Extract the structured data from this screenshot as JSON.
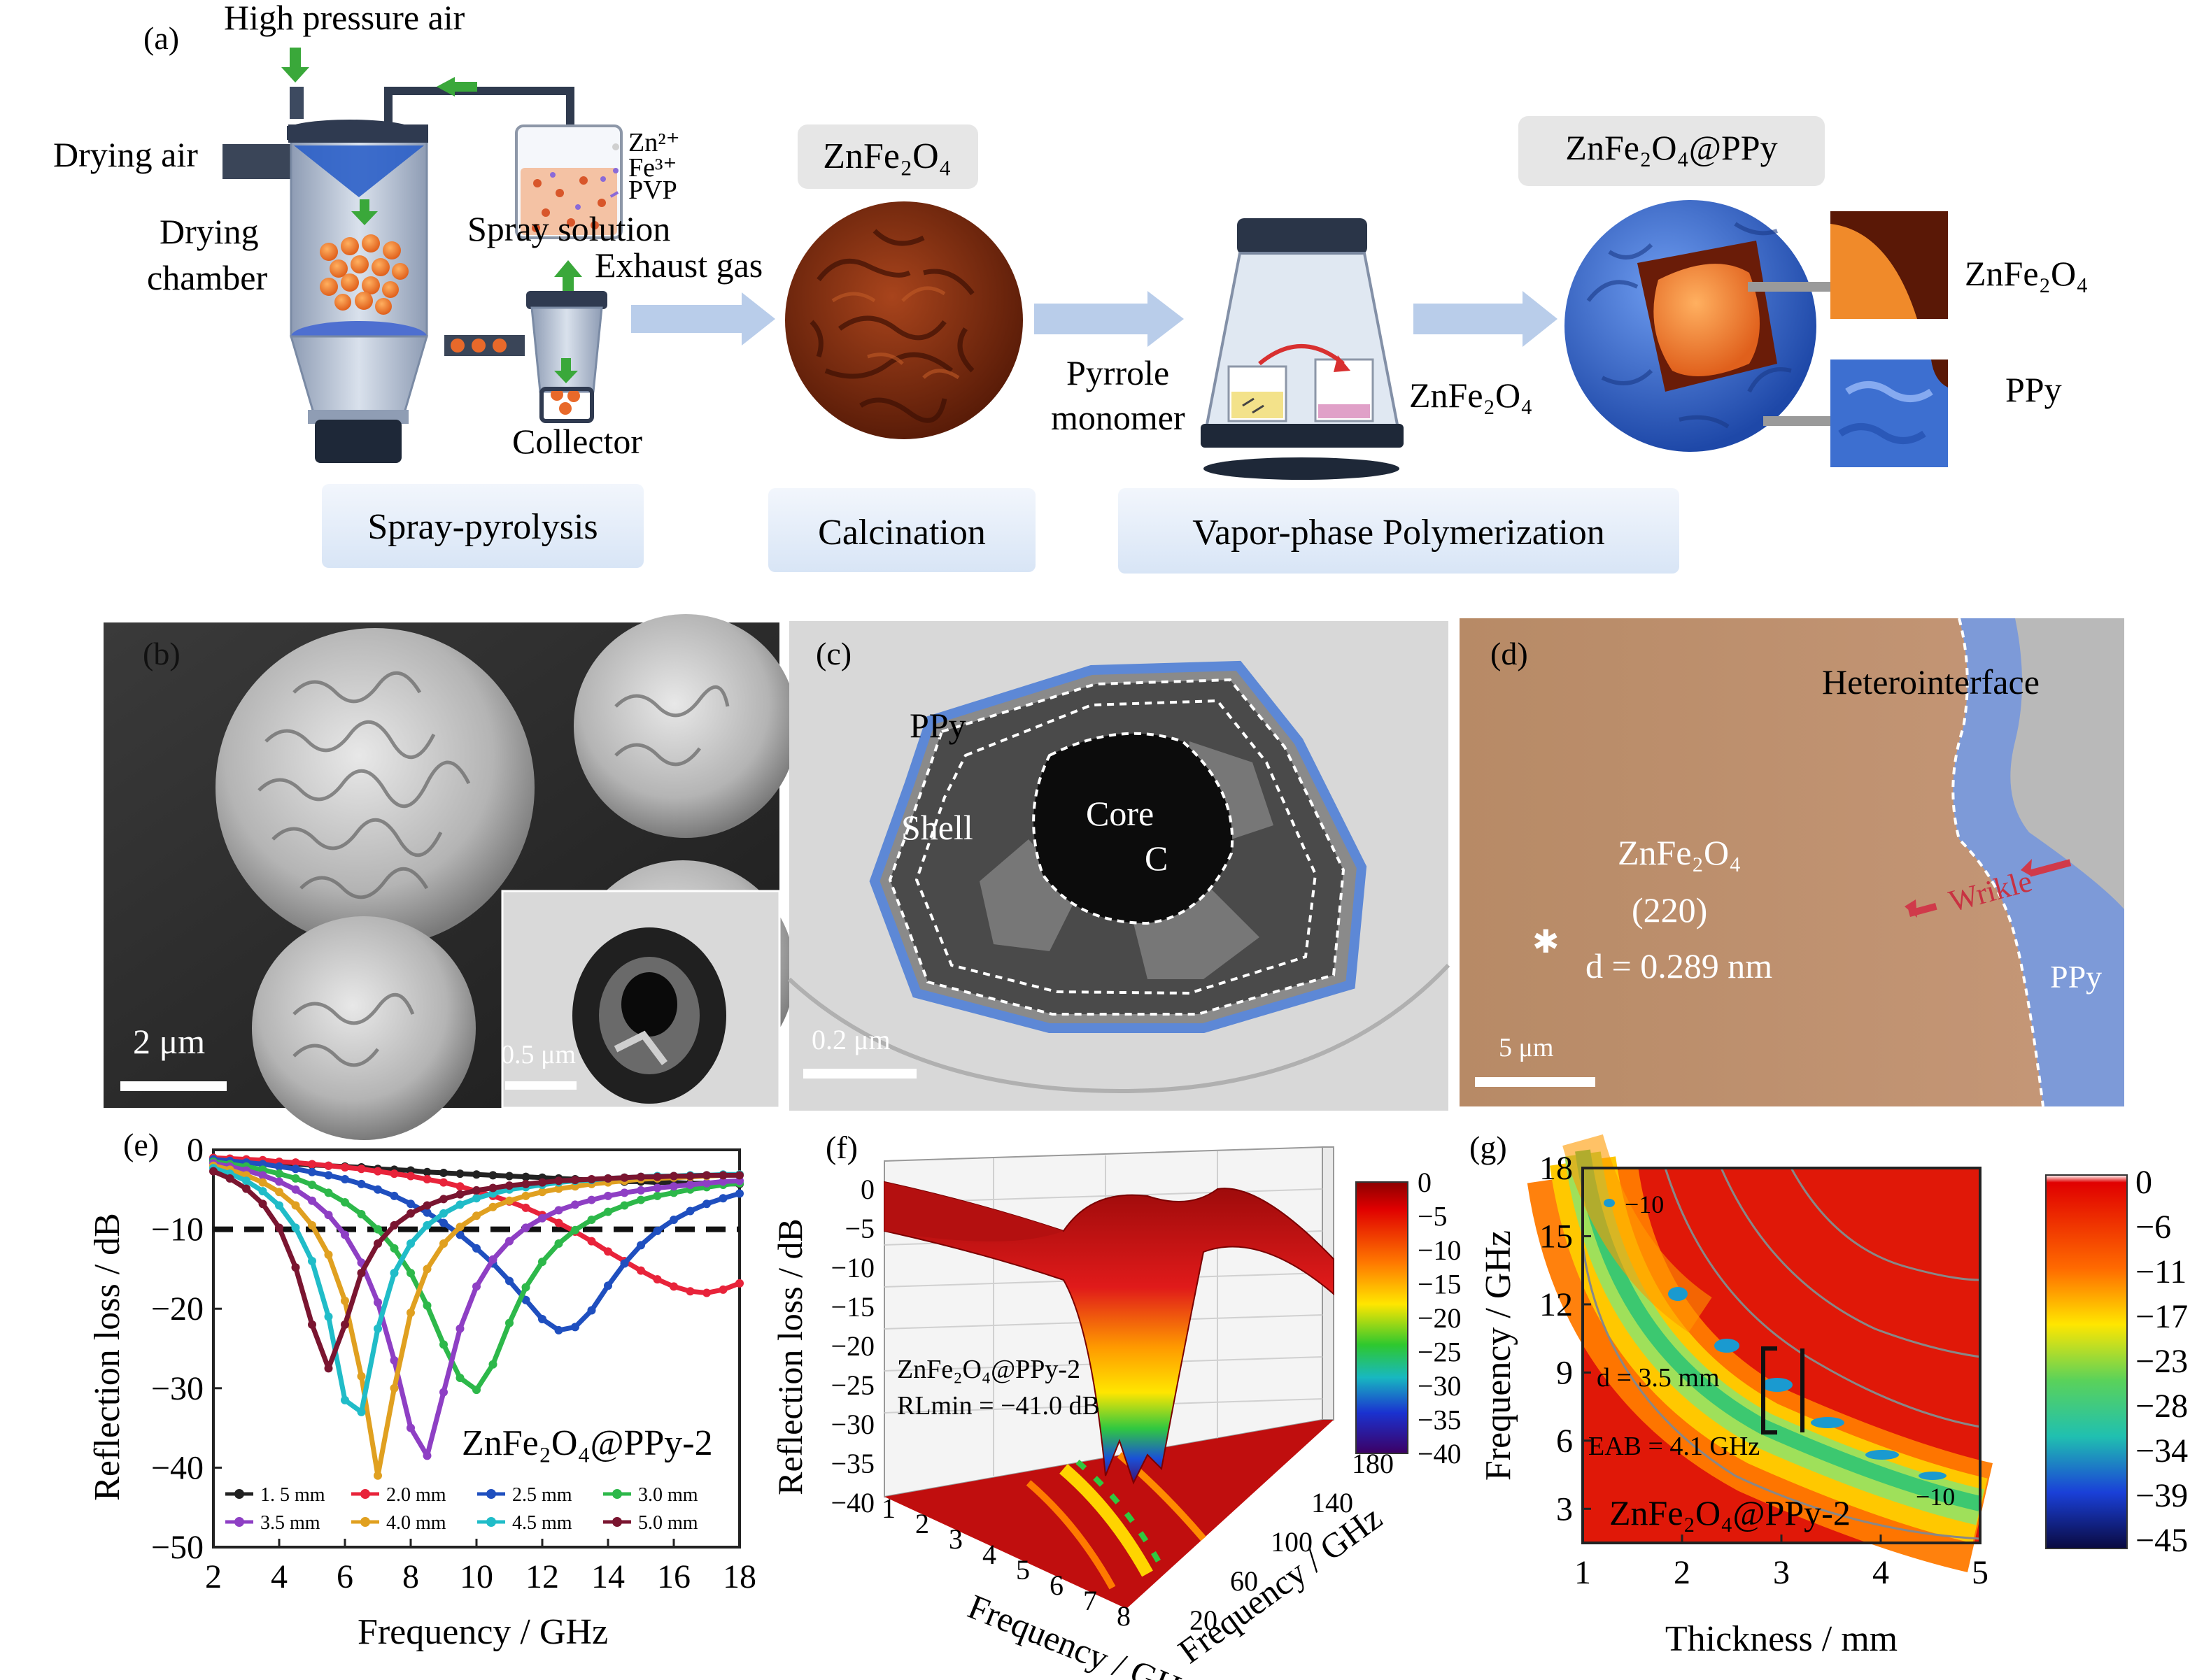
{
  "panel_a": {
    "label": "(a)",
    "high_pressure_air": "High pressure air",
    "drying_air": "Drying air",
    "drying_chamber_1": "Drying",
    "drying_chamber_2": "chamber",
    "zn": "Zn²⁺",
    "fe": "Fe³⁺",
    "pvp": "PVP",
    "spray_solution": "Spray solution",
    "exhaust_gas": "Exhaust gas",
    "collector": "Collector",
    "znfe2o4_tag": "ZnFe₂O₄",
    "pyrrole_1": "Pyrrole",
    "pyrrole_2": "monomer",
    "znfe2o4_mid": "ZnFe₂O₄",
    "composite_tag": "ZnFe₂O₄@PPy",
    "znfe2o4_right": "ZnFe₂O₄",
    "ppy_right": "PPy",
    "step_1": "Spray-pyrolysis",
    "step_2": "Calcination",
    "step_3": "Vapor-phase Polymerization",
    "colors": {
      "particle": "#e8692a",
      "shell": "#7a2a10",
      "ppy": "#3d6fd0",
      "chamber": "#b8c3d4",
      "arrow": "#b9cdea",
      "green_arrow": "#3aa83a"
    }
  },
  "panel_b": {
    "label": "(b)",
    "scale_main": "2 μm",
    "scale_inset": "0.5 μm"
  },
  "panel_c": {
    "label": "(c)",
    "ppy": "PPy",
    "shell": "Shell",
    "core": "Core",
    "c": "C",
    "scale": "0.2 μm"
  },
  "panel_d": {
    "label": "(d)",
    "hetero": "Heterointerface",
    "znfe2o4": "ZnFe₂O₄",
    "plane": "(220)",
    "d_value": "d = 0.289 nm",
    "wrinkle": "Wrikle",
    "ppy": "PPy",
    "scale": "5 μm"
  },
  "chart_data": [
    {
      "panel": "(e)",
      "type": "line",
      "xlabel": "Frequency / GHz",
      "ylabel": "Reflection loss / dB",
      "xlim": [
        2,
        18
      ],
      "ylim": [
        -50,
        0
      ],
      "xticks": [
        "2",
        "4",
        "6",
        "8",
        "10",
        "12",
        "14",
        "16",
        "18"
      ],
      "yticks": [
        "0",
        "−10",
        "−20",
        "−30",
        "−40",
        "−50"
      ],
      "annotation": "ZnFe₂O₄@PPy-2",
      "reference_line": -10,
      "x": [
        2,
        2.5,
        3,
        3.5,
        4,
        4.5,
        5,
        5.5,
        6,
        6.5,
        7,
        7.5,
        8,
        8.5,
        9,
        9.5,
        10,
        10.5,
        11,
        11.5,
        12,
        12.5,
        13,
        13.5,
        14,
        14.5,
        15,
        15.5,
        16,
        16.5,
        17,
        17.5,
        18
      ],
      "series": [
        {
          "name": "1. 5 mm",
          "color": "#222222",
          "values": [
            -1.3,
            -1.4,
            -1.5,
            -1.6,
            -1.7,
            -1.8,
            -1.9,
            -2.0,
            -2.1,
            -2.2,
            -2.4,
            -2.5,
            -2.6,
            -2.8,
            -2.9,
            -3.0,
            -3.1,
            -3.2,
            -3.3,
            -3.4,
            -3.5,
            -3.6,
            -3.7,
            -3.8,
            -3.9,
            -4.0,
            -4.0,
            -4.1,
            -4.1,
            -4.2,
            -4.2,
            -4.3,
            -4.3
          ]
        },
        {
          "name": "2.0 mm",
          "color": "#e8233a",
          "values": [
            -1.0,
            -1.1,
            -1.2,
            -1.3,
            -1.5,
            -1.6,
            -1.8,
            -2.0,
            -2.2,
            -2.4,
            -2.7,
            -3.0,
            -3.3,
            -3.7,
            -4.1,
            -4.6,
            -5.2,
            -5.8,
            -6.5,
            -7.3,
            -8.2,
            -9.2,
            -10.3,
            -11.5,
            -12.8,
            -14.0,
            -15.2,
            -16.3,
            -17.2,
            -17.8,
            -18.0,
            -17.6,
            -16.8
          ]
        },
        {
          "name": "2.5 mm",
          "color": "#1f4fbf",
          "values": [
            -1.2,
            -1.4,
            -1.6,
            -1.8,
            -2.1,
            -2.4,
            -2.8,
            -3.2,
            -3.7,
            -4.3,
            -5.0,
            -5.8,
            -6.8,
            -7.9,
            -9.2,
            -10.7,
            -12.4,
            -14.3,
            -16.5,
            -18.9,
            -21.3,
            -22.7,
            -22.3,
            -20.2,
            -17.1,
            -14.3,
            -12.0,
            -10.2,
            -8.8,
            -7.7,
            -6.8,
            -6.1,
            -5.5
          ]
        },
        {
          "name": "3.0 mm",
          "color": "#2db84a",
          "values": [
            -1.5,
            -1.8,
            -2.1,
            -2.5,
            -3.0,
            -3.6,
            -4.4,
            -5.4,
            -6.6,
            -8.1,
            -10.0,
            -12.4,
            -15.5,
            -19.6,
            -24.5,
            -28.7,
            -30.2,
            -27.0,
            -21.8,
            -17.3,
            -14.1,
            -11.8,
            -10.1,
            -8.8,
            -7.8,
            -7.0,
            -6.3,
            -5.8,
            -5.4,
            -5.0,
            -4.7,
            -4.4,
            -4.2
          ]
        },
        {
          "name": "3.5 mm",
          "color": "#8e3fc4",
          "values": [
            -1.7,
            -2.1,
            -2.6,
            -3.2,
            -4.0,
            -5.0,
            -6.4,
            -8.2,
            -10.7,
            -14.2,
            -19.2,
            -26.5,
            -35.0,
            -38.5,
            -30.5,
            -22.5,
            -17.2,
            -13.8,
            -11.5,
            -9.8,
            -8.6,
            -7.6,
            -6.9,
            -6.3,
            -5.8,
            -5.4,
            -5.1,
            -4.8,
            -4.6,
            -4.4,
            -4.2,
            -4.0,
            -3.9
          ]
        },
        {
          "name": "4.0 mm",
          "color": "#e0a020",
          "values": [
            -2.0,
            -2.5,
            -3.2,
            -4.1,
            -5.3,
            -7.0,
            -9.5,
            -13.2,
            -19.0,
            -28.5,
            -41.0,
            -30.0,
            -20.5,
            -15.0,
            -11.8,
            -9.7,
            -8.3,
            -7.2,
            -6.4,
            -5.8,
            -5.3,
            -4.9,
            -4.6,
            -4.3,
            -4.1,
            -3.9,
            -3.7,
            -3.6,
            -3.5,
            -3.4,
            -3.3,
            -3.2,
            -3.1
          ]
        },
        {
          "name": "4.5 mm",
          "color": "#20bcc8",
          "values": [
            -2.3,
            -3.0,
            -3.9,
            -5.2,
            -7.0,
            -9.8,
            -14.0,
            -21.0,
            -31.5,
            -33.0,
            -22.5,
            -15.5,
            -11.8,
            -9.5,
            -8.0,
            -6.9,
            -6.1,
            -5.5,
            -5.0,
            -4.7,
            -4.4,
            -4.1,
            -3.9,
            -3.8,
            -3.6,
            -3.5,
            -3.4,
            -3.3,
            -3.3,
            -3.2,
            -3.2,
            -3.1,
            -3.1
          ]
        },
        {
          "name": "5.0 mm",
          "color": "#7a1530",
          "values": [
            -2.7,
            -3.6,
            -4.9,
            -6.8,
            -9.8,
            -14.8,
            -22.0,
            -27.5,
            -22.0,
            -15.5,
            -11.8,
            -9.5,
            -8.0,
            -7.0,
            -6.2,
            -5.6,
            -5.1,
            -4.8,
            -4.5,
            -4.3,
            -4.1,
            -3.9,
            -3.8,
            -3.7,
            -3.6,
            -3.5,
            -3.4,
            -3.4,
            -3.3,
            -3.3,
            -3.2,
            -3.2,
            -3.2
          ]
        }
      ]
    },
    {
      "panel": "(f)",
      "type": "heatmap",
      "ylabel": "Reflection loss / dB",
      "xlabel": "Frequency / GHz",
      "zlabel": "Frequency / GHz",
      "yticks": [
        "0",
        "−5",
        "−10",
        "−15",
        "−20",
        "−25",
        "−30",
        "−35",
        "−40"
      ],
      "xticks": [
        "1",
        "2",
        "3",
        "4",
        "5",
        "6",
        "7",
        "8"
      ],
      "zticks": [
        "20",
        "60",
        "100",
        "140",
        "180"
      ],
      "colorbar_ticks": [
        "0",
        "−5",
        "−10",
        "−15",
        "−20",
        "−25",
        "−30",
        "−35",
        "−40"
      ],
      "annotation_1": "ZnFe₂O₄@PPy-2",
      "annotation_2": "RLmin = −41.0 dB"
    },
    {
      "panel": "(g)",
      "type": "heatmap",
      "xlabel": "Thickness / mm",
      "ylabel": "Frequency / GHz",
      "xlim": [
        1,
        5
      ],
      "ylim": [
        1.5,
        18
      ],
      "xticks": [
        "1",
        "2",
        "3",
        "4",
        "5"
      ],
      "yticks": [
        "3",
        "6",
        "9",
        "12",
        "15",
        "18"
      ],
      "colorbar_ticks": [
        "0",
        "−6",
        "−11",
        "−17",
        "−23",
        "−28",
        "−34",
        "−39",
        "−45"
      ],
      "contour_label_1": "−10",
      "contour_label_2": "−10",
      "d_label": "d = 3.5 mm",
      "eab_label": "EAB = 4.1 GHz",
      "annotation": "ZnFe₂O₄@PPy-2"
    }
  ]
}
